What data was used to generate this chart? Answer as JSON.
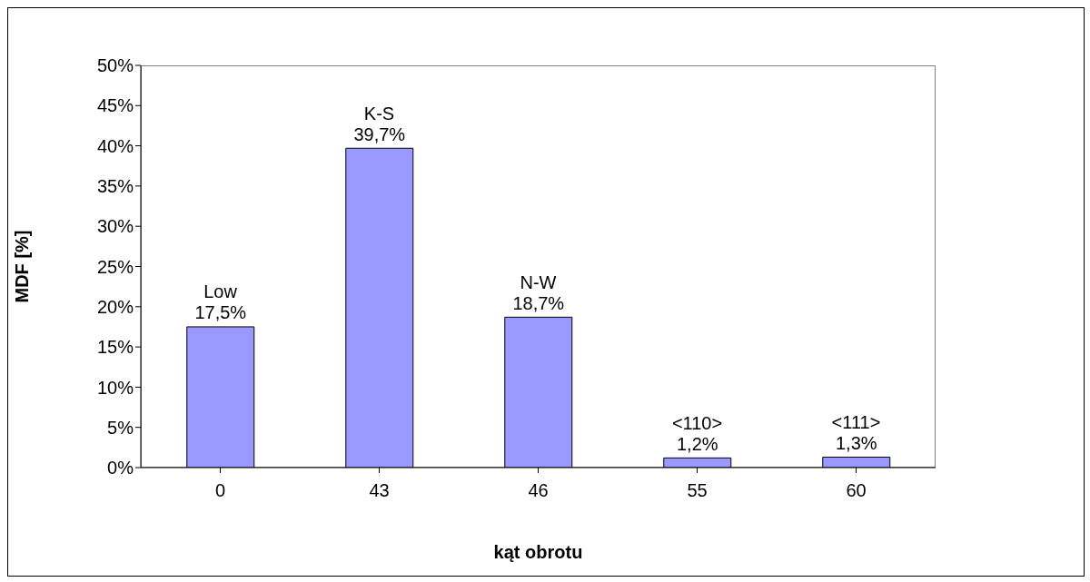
{
  "chart_data": {
    "type": "bar",
    "xlabel": "kąt obrotu",
    "ylabel": "MDF [%]",
    "categories": [
      "0",
      "43",
      "46",
      "55",
      "60"
    ],
    "values": [
      17.5,
      39.7,
      18.7,
      1.2,
      1.3
    ],
    "value_labels": [
      "17,5%",
      "39,7%",
      "18,7%",
      "1,2%",
      "1,3%"
    ],
    "color": "#9999ff",
    "ylim": [
      0,
      50
    ],
    "yticks": [
      {
        "value": 0,
        "label": "0%"
      },
      {
        "value": 5,
        "label": "5%"
      },
      {
        "value": 10,
        "label": "10%"
      },
      {
        "value": 15,
        "label": "15%"
      },
      {
        "value": 20,
        "label": "20%"
      },
      {
        "value": 25,
        "label": "25%"
      },
      {
        "value": 30,
        "label": "30%"
      },
      {
        "value": 35,
        "label": "35%"
      },
      {
        "value": 40,
        "label": "40%"
      },
      {
        "value": 45,
        "label": "45%"
      },
      {
        "value": 50,
        "label": "50%"
      }
    ],
    "annotations": [
      {
        "text": "Low",
        "x": "0",
        "y": 17.5
      },
      {
        "text": "K-S",
        "x": "43",
        "y": 39.7
      },
      {
        "text": "N-W",
        "x": "46",
        "y": 18.7
      },
      {
        "text": "<110>",
        "x": "55",
        "y": 1.2
      },
      {
        "text": "<111>",
        "x": "60",
        "y": 1.3
      }
    ],
    "grid": false,
    "legend": false
  }
}
